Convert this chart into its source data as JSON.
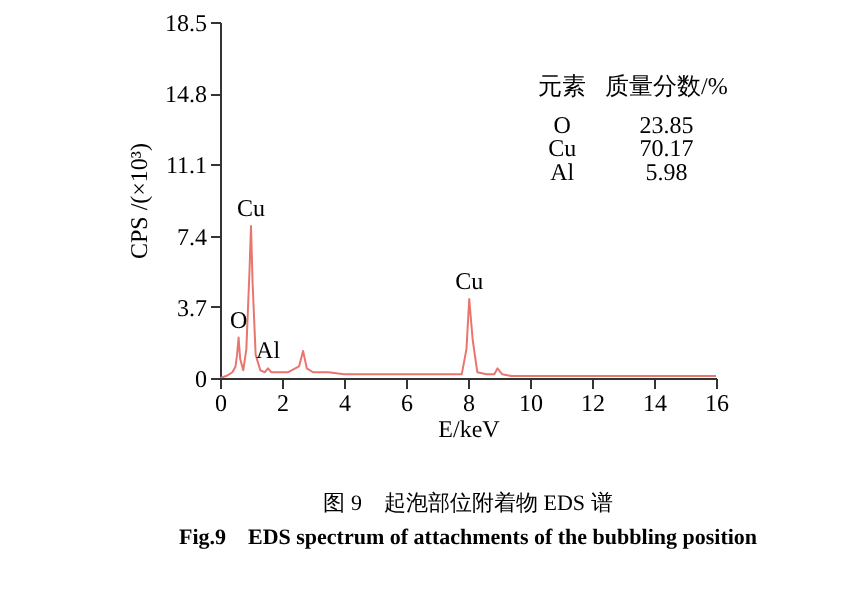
{
  "chart_data": {
    "type": "line",
    "title": "图 9　起泡部位附着物 EDS 谱",
    "subtitle": "Fig.9　EDS spectrum of attachments of the bubbling position",
    "xlabel": "E/keV",
    "ylabel": "CPS /(×10³)",
    "x": [
      0,
      0.2,
      0.4,
      0.5,
      0.55,
      0.6,
      0.65,
      0.75,
      0.85,
      0.95,
      1.0,
      1.05,
      1.15,
      1.3,
      1.45,
      1.55,
      1.65,
      1.8,
      2.2,
      2.55,
      2.68,
      2.8,
      3.0,
      3.5,
      4.0,
      5,
      6,
      7,
      7.8,
      7.95,
      8.04,
      8.15,
      8.3,
      8.6,
      8.85,
      8.95,
      9.1,
      9.4,
      10,
      12,
      14,
      16
    ],
    "series": [
      {
        "color": "#e8766f",
        "values": [
          0,
          0.1,
          0.3,
          0.6,
          1.2,
          2.1,
          1.0,
          0.4,
          1.5,
          5.5,
          7.9,
          5.0,
          1.2,
          0.4,
          0.3,
          0.5,
          0.3,
          0.3,
          0.3,
          0.6,
          1.4,
          0.5,
          0.3,
          0.3,
          0.2,
          0.2,
          0.2,
          0.2,
          0.2,
          1.5,
          4.1,
          2.0,
          0.3,
          0.2,
          0.2,
          0.5,
          0.2,
          0.1,
          0.1,
          0.1,
          0.1,
          0.1
        ]
      }
    ],
    "xlim": [
      0,
      16
    ],
    "xticks": [
      0,
      2,
      4,
      6,
      8,
      10,
      12,
      14,
      16
    ],
    "ylim": [
      0,
      18.5
    ],
    "yticks": [
      0,
      3.7,
      7.4,
      11.1,
      14.8,
      18.5
    ],
    "grid": false,
    "marker": "none",
    "line_style": "solid",
    "annotations": [
      {
        "text": "Cu",
        "x": 1.0,
        "y": 7.9
      },
      {
        "text": "O",
        "x": 0.6,
        "y": 2.1
      },
      {
        "text": "Al",
        "x": 1.55,
        "y": 0.5
      },
      {
        "text": "Cu",
        "x": 8.04,
        "y": 4.1
      },
      "元素",
      "质量分数/%",
      "O",
      "23.85",
      "Cu",
      "70.17",
      "Al",
      "5.98"
    ]
  }
}
